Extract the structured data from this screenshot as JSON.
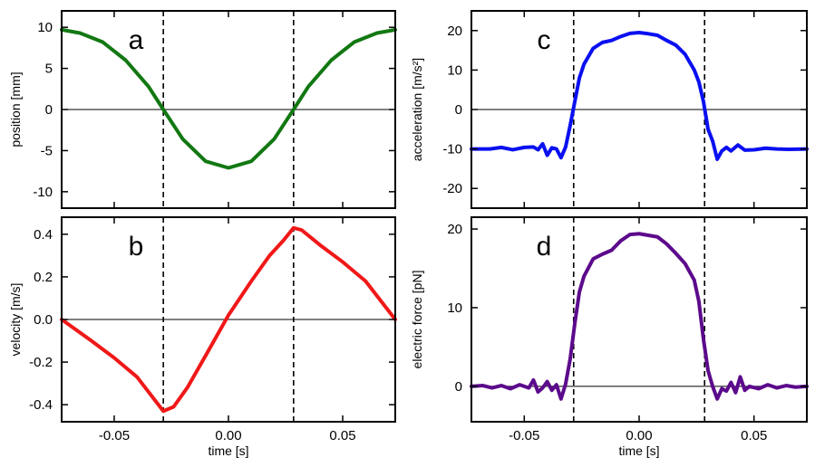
{
  "chart_data": [
    {
      "panel": "a",
      "type": "line",
      "xlabel": "",
      "ylabel": "position [mm]",
      "xlim": [
        -0.073,
        0.073
      ],
      "ylim": [
        -12,
        12
      ],
      "x_ticks": [
        -0.05,
        0.0,
        0.05
      ],
      "y_ticks": [
        10,
        5,
        0,
        -5,
        -10
      ],
      "y_tick_labels": [
        "10",
        "5",
        "0",
        "-5",
        "-10"
      ],
      "zero_line": true,
      "dashed_lines_x": [
        -0.0285,
        0.0285
      ],
      "series": [
        {
          "name": "position",
          "color": "#127812",
          "x": [
            -0.073,
            -0.065,
            -0.055,
            -0.045,
            -0.035,
            -0.0285,
            -0.02,
            -0.01,
            0.0,
            0.01,
            0.02,
            0.0285,
            0.035,
            0.045,
            0.055,
            0.065,
            0.073
          ],
          "y": [
            9.7,
            9.3,
            8.2,
            6.0,
            2.8,
            0.0,
            -3.6,
            -6.3,
            -7.1,
            -6.3,
            -3.6,
            0.0,
            2.8,
            6.0,
            8.2,
            9.3,
            9.7
          ]
        }
      ]
    },
    {
      "panel": "b",
      "type": "line",
      "xlabel": "time [s]",
      "ylabel": "velocity [m/s]",
      "xlim": [
        -0.073,
        0.073
      ],
      "ylim": [
        -0.48,
        0.48
      ],
      "x_ticks": [
        -0.05,
        0.0,
        0.05
      ],
      "x_tick_labels": [
        "-0.05",
        "0.00",
        "0.05"
      ],
      "y_ticks": [
        0.4,
        0.2,
        0.0,
        -0.2,
        -0.4
      ],
      "y_tick_labels": [
        "0.4",
        "0.2",
        "0.0",
        "-0.2",
        "-0.4"
      ],
      "zero_line": true,
      "dashed_lines_x": [
        -0.0285,
        0.0285
      ],
      "series": [
        {
          "name": "velocity",
          "color": "#f01818",
          "x": [
            -0.073,
            -0.06,
            -0.05,
            -0.04,
            -0.0285,
            -0.024,
            -0.018,
            -0.01,
            0.0,
            0.01,
            0.018,
            0.024,
            0.0285,
            0.032,
            0.04,
            0.05,
            0.06,
            0.073
          ],
          "y": [
            0.0,
            -0.1,
            -0.18,
            -0.27,
            -0.43,
            -0.41,
            -0.32,
            -0.17,
            0.02,
            0.18,
            0.3,
            0.37,
            0.43,
            0.42,
            0.35,
            0.27,
            0.18,
            0.0
          ]
        }
      ]
    },
    {
      "panel": "c",
      "type": "line",
      "xlabel": "",
      "ylabel": "acceleration [m/s²]",
      "xlim": [
        -0.073,
        0.073
      ],
      "ylim": [
        -25,
        25
      ],
      "x_ticks": [
        -0.05,
        0.0,
        0.05
      ],
      "y_ticks": [
        20,
        10,
        0,
        -10,
        -20
      ],
      "y_tick_labels": [
        "20",
        "10",
        "0",
        "-10",
        "-20"
      ],
      "zero_line": true,
      "dashed_lines_x": [
        -0.0285,
        0.0285
      ],
      "series": [
        {
          "name": "acceleration",
          "color": "#0a10f0",
          "x": [
            -0.073,
            -0.065,
            -0.06,
            -0.055,
            -0.05,
            -0.046,
            -0.044,
            -0.042,
            -0.04,
            -0.038,
            -0.036,
            -0.034,
            -0.032,
            -0.03,
            -0.028,
            -0.026,
            -0.024,
            -0.02,
            -0.016,
            -0.012,
            -0.008,
            -0.004,
            0.0,
            0.004,
            0.008,
            0.012,
            0.016,
            0.02,
            0.024,
            0.026,
            0.028,
            0.03,
            0.032,
            0.034,
            0.036,
            0.038,
            0.04,
            0.043,
            0.046,
            0.05,
            0.055,
            0.06,
            0.065,
            0.073
          ],
          "y": [
            -10,
            -10,
            -9.6,
            -10.2,
            -9.6,
            -9.5,
            -10.2,
            -8.7,
            -11.6,
            -9.7,
            -10.0,
            -12.2,
            -9.5,
            -4.0,
            2.0,
            8.0,
            11.5,
            15.5,
            17.0,
            17.5,
            18.5,
            19.3,
            19.5,
            19.2,
            18.8,
            17.5,
            16.3,
            14.0,
            10.0,
            7.0,
            2.0,
            -5.0,
            -8.0,
            -12.6,
            -10.5,
            -9.6,
            -10.5,
            -9.0,
            -10.3,
            -10.2,
            -9.8,
            -10.0,
            -10.1,
            -10.0
          ]
        }
      ]
    },
    {
      "panel": "d",
      "type": "line",
      "xlabel": "time [s]",
      "ylabel": "electric force [pN]",
      "xlim": [
        -0.073,
        0.073
      ],
      "ylim": [
        -4.5,
        21.5
      ],
      "x_ticks": [
        -0.05,
        0.0,
        0.05
      ],
      "x_tick_labels": [
        "-0.05",
        "0.00",
        "0.05"
      ],
      "y_ticks": [
        20,
        10,
        0
      ],
      "y_tick_labels": [
        "20",
        "10",
        "0"
      ],
      "zero_line": true,
      "dashed_lines_x": [
        -0.0285,
        0.0285
      ],
      "series": [
        {
          "name": "electric force",
          "color": "#5c0a8c",
          "x": [
            -0.073,
            -0.068,
            -0.064,
            -0.06,
            -0.056,
            -0.052,
            -0.048,
            -0.046,
            -0.044,
            -0.042,
            -0.04,
            -0.038,
            -0.036,
            -0.034,
            -0.032,
            -0.03,
            -0.028,
            -0.026,
            -0.024,
            -0.02,
            -0.016,
            -0.012,
            -0.008,
            -0.004,
            0.0,
            0.004,
            0.008,
            0.012,
            0.016,
            0.02,
            0.024,
            0.026,
            0.028,
            0.03,
            0.032,
            0.034,
            0.036,
            0.038,
            0.04,
            0.042,
            0.044,
            0.046,
            0.048,
            0.052,
            0.056,
            0.06,
            0.064,
            0.068,
            0.073
          ],
          "y": [
            0,
            0.1,
            -0.2,
            0.1,
            -0.3,
            0.2,
            -0.2,
            0.8,
            -0.7,
            -0.2,
            0.6,
            -0.5,
            0.2,
            -1.6,
            0.3,
            3.5,
            8.0,
            12.0,
            14.0,
            16.2,
            16.8,
            17.3,
            18.5,
            19.3,
            19.4,
            19.2,
            19.0,
            18.1,
            16.9,
            15.6,
            13.5,
            10.8,
            6.0,
            2.0,
            0.0,
            -1.6,
            -0.3,
            -0.6,
            0.5,
            -0.8,
            1.2,
            -0.5,
            0.0,
            -0.3,
            0.2,
            -0.2,
            0.1,
            -0.1,
            0.0
          ]
        }
      ]
    }
  ]
}
